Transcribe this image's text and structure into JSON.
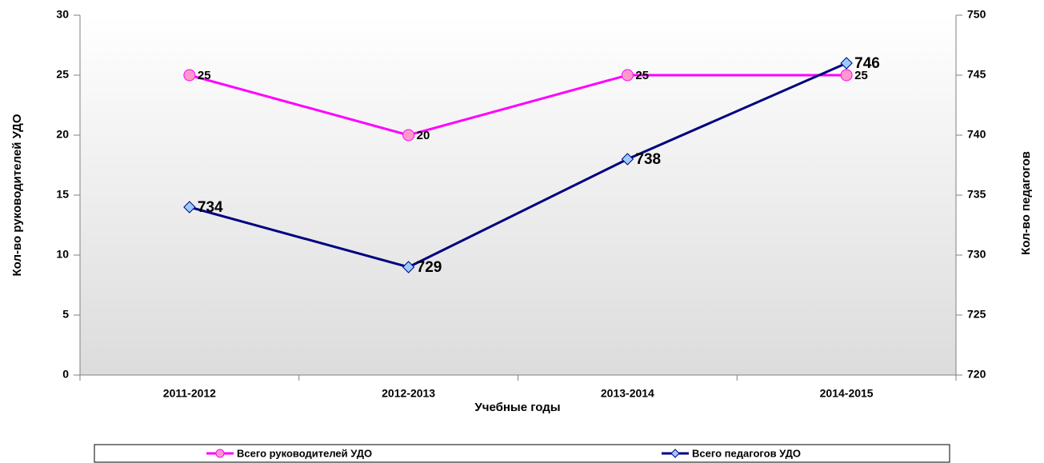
{
  "chart_data": {
    "type": "line",
    "xlabel": "Учебные годы",
    "ylabel": "Кол-во руководителей УДО",
    "y2label": "Кол-во педагогов",
    "categories": [
      "2011-2012",
      "2012-2013",
      "2013-2014",
      "2014-2015"
    ],
    "series": [
      {
        "name": "Всего руководителей УДО",
        "color": "#ff00ff",
        "marker_color": "#ff99cc",
        "values": [
          25,
          20,
          25,
          25
        ]
      },
      {
        "name": "Всего педагогов УДО",
        "color": "#000080",
        "marker_color": "#99ccff",
        "values": [
          734,
          729,
          738,
          746
        ],
        "axis": "y2"
      }
    ],
    "ylim": [
      0,
      30
    ],
    "yticks": [
      0,
      5,
      10,
      15,
      20,
      25,
      30
    ],
    "y2lim": [
      720,
      750
    ],
    "y2ticks": [
      720,
      725,
      730,
      735,
      740,
      745,
      750
    ],
    "legend": "bottom"
  }
}
